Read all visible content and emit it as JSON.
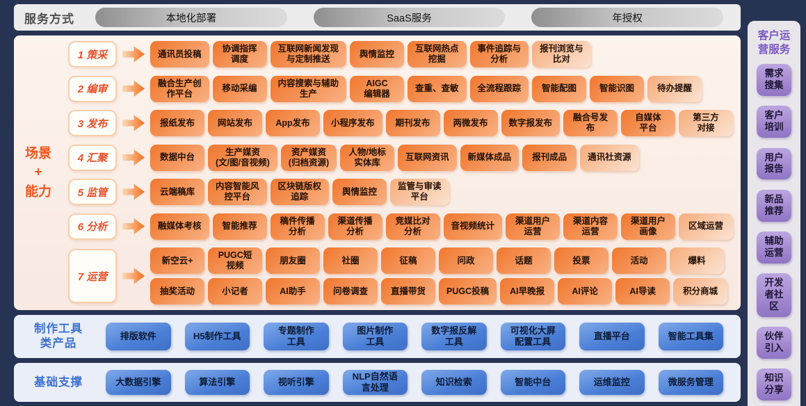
{
  "colors": {
    "accent_orange": "#f2571f",
    "orange_gradient_start": "#f0772e",
    "orange_gradient_end": "#f9b183",
    "stage_text": "#e8512c",
    "blue_accent": "#3f72cf",
    "purple_accent": "#7a57c1",
    "bg_dark": "#273352"
  },
  "service_bar": {
    "label": "服务方式",
    "pills": [
      "本地化部署",
      "SaaS服务",
      "年授权"
    ]
  },
  "scenario": {
    "label": "场景\n+\n能力",
    "rows": [
      {
        "stage": "1 策采",
        "items": [
          "通讯员投稿",
          "协调指挥\n调度",
          "互联网新闻发现\n与定制推送",
          "舆情监控",
          "互联网热点\n挖掘",
          "事件追踪与\n分析",
          "报刊浏览与\n比对"
        ]
      },
      {
        "stage": "2 编审",
        "items": [
          "融合生产创\n作平台",
          "移动采编",
          "内容搜索与辅助\n生产",
          "AIGC\n编辑器",
          "查重、查敏",
          "全流程跟踪",
          "智能配图",
          "智能识图",
          "待办提醒"
        ]
      },
      {
        "stage": "3 发布",
        "items": [
          "报纸发布",
          "网站发布",
          "App发布",
          "小程序发布",
          "期刊发布",
          "两微发布",
          "数字报发布",
          "融合号发\n布",
          "自媒体\n平台",
          "第三方\n对接"
        ]
      },
      {
        "stage": "4 汇聚",
        "items": [
          "数据中台",
          "生产媒资\n(文/图/音视频)",
          "资产媒资\n(归档资源)",
          "人物/地标\n实体库",
          "互联网资讯",
          "新媒体成品",
          "报刊成品",
          "通讯社资源"
        ]
      },
      {
        "stage": "5 监管",
        "items": [
          "云端稿库",
          "内容智能风\n控平台",
          "区块链版权\n追踪",
          "舆情监控",
          "监管与审读\n平台"
        ]
      },
      {
        "stage": "6 分析",
        "items": [
          "融媒体考核",
          "智能推荐",
          "稿件传播\n分析",
          "渠道传播\n分析",
          "竞媒比对\n分析",
          "音视频统计",
          "渠道用户\n运营",
          "渠道内容\n运营",
          "渠道用户\n画像",
          "区域运营"
        ]
      },
      {
        "stage": "7 运营",
        "lines": [
          [
            "新空云+",
            "PUGC短\n视频",
            "朋友圈",
            "社圈",
            "征稿",
            "问政",
            "话题",
            "投票",
            "活动",
            "爆料"
          ],
          [
            "抽奖活动",
            "小记者",
            "AI助手",
            "问卷调查",
            "直播带货",
            "PUGC投稿",
            "AI早晚报",
            "AI评论",
            "AI导读",
            "积分商城"
          ]
        ]
      }
    ]
  },
  "tools": {
    "label": "制作工具\n类产品",
    "items": [
      "排版软件",
      "H5制作工具",
      "专题制作\n工具",
      "图片制作\n工具",
      "数字报反解\n工具",
      "可视化大屏\n配置工具",
      "直播平台",
      "智能工具集"
    ]
  },
  "base": {
    "label": "基础支撑",
    "items": [
      "大数据引擎",
      "算法引擎",
      "视听引擎",
      "NLP自然语\n言处理",
      "知识检索",
      "智能中台",
      "运维监控",
      "微服务管理"
    ]
  },
  "sidebar": {
    "title": "客户运\n营服务",
    "items": [
      "需求\n搜集",
      "客户\n培训",
      "用户\n报告",
      "新品\n推荐",
      "辅助\n运营",
      "开发\n者社\n区",
      "伙伴\n引入",
      "知识\n分享"
    ]
  }
}
